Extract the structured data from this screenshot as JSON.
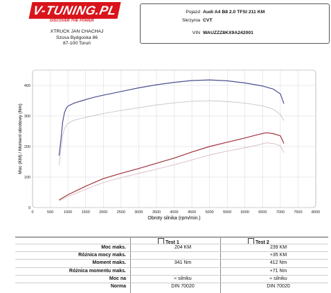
{
  "header": {
    "logo_text": "V-TUNING.PL",
    "logo_tagline": "DISCOVER THE POWER",
    "company_name": "XTRUCK JAN CHACHAJ",
    "company_street": "Szosa Bydgoska 86",
    "company_city": "87-100 Toruń"
  },
  "vehicle": {
    "pojazd_label": "Pojazd",
    "pojazd_value": "Audi A4 B8 2.0 TFSI 211 KM",
    "skrzynia_label": "Skrzynia",
    "skrzynia_value": "CVT",
    "vin_label": "VIN",
    "vin_value": "WAUZZZ8KX9A242001"
  },
  "colors": {
    "power_tuned": "#4b4f8f",
    "torque_tuned": "#bdbdc7",
    "power_stock": "#a0303c",
    "torque_stock": "#d6b3b8",
    "grid": "#cccccc",
    "plot_bg": "#ffffff"
  },
  "chart_data": {
    "type": "line",
    "xlabel": "Obroty silnika (rpm/min.)",
    "ylabel": "Moc (KM) / Moment obrotowy (Nm)",
    "xlim": [
      0,
      8000
    ],
    "ylim": [
      0,
      450
    ],
    "xticks": [
      0,
      500,
      1000,
      1500,
      2000,
      2500,
      3000,
      3500,
      4000,
      4500,
      5000,
      5500,
      6000,
      6500,
      7000,
      7500,
      8000
    ],
    "yticks": [
      0,
      100,
      200,
      300,
      400
    ],
    "grid": true,
    "series": [
      {
        "x": [
          750,
          800,
          850,
          900,
          950,
          1000,
          1100,
          1200,
          1400,
          1600,
          1800,
          2000,
          2500,
          3000,
          3500,
          4000,
          4500,
          5000,
          5500,
          6000,
          6500,
          6800,
          7000,
          7100
        ],
        "y": [
          170,
          220,
          280,
          310,
          325,
          332,
          338,
          343,
          350,
          357,
          363,
          368,
          380,
          392,
          402,
          410,
          416,
          418,
          415,
          408,
          398,
          388,
          372,
          340
        ]
      },
      {
        "x": [
          750,
          800,
          850,
          900,
          950,
          1000,
          1100,
          1200,
          1400,
          1600,
          1800,
          2000,
          2500,
          3000,
          3500,
          4000,
          4500,
          5000,
          5500,
          6000,
          6500,
          6800,
          7000,
          7100
        ],
        "y": [
          140,
          190,
          235,
          258,
          268,
          275,
          282,
          287,
          293,
          298,
          303,
          308,
          318,
          327,
          336,
          343,
          348,
          350,
          347,
          342,
          333,
          322,
          305,
          285
        ]
      },
      {
        "x": [
          750,
          1000,
          1500,
          2000,
          2500,
          3000,
          3500,
          4000,
          4500,
          5000,
          5500,
          6000,
          6400,
          6600,
          6800,
          7000,
          7100
        ],
        "y": [
          25,
          42,
          70,
          95,
          112,
          128,
          145,
          162,
          182,
          200,
          214,
          228,
          240,
          245,
          242,
          235,
          210
        ]
      },
      {
        "x": [
          750,
          1000,
          1500,
          2000,
          2500,
          3000,
          3500,
          4000,
          4500,
          5000,
          5500,
          6000,
          6400,
          6600,
          6800,
          7000,
          7100
        ],
        "y": [
          22,
          36,
          60,
          82,
          98,
          112,
          126,
          140,
          156,
          172,
          185,
          196,
          206,
          212,
          210,
          202,
          180
        ]
      }
    ]
  },
  "table": {
    "test1_header": "Test 1",
    "test2_header": "Test 2",
    "rows": [
      {
        "label": "Moc maks.",
        "test1": "204 KM",
        "test2": "239 KM"
      },
      {
        "label": "Różnica mocy maks.",
        "test1": "",
        "test2": "+35 KM"
      },
      {
        "label": "Moment maks.",
        "test1": "341 Nm",
        "test2": "412 Nm"
      },
      {
        "label": "Różnica momentu maks.",
        "test1": "",
        "test2": "+71 Nm"
      },
      {
        "label": "Moc na",
        "test1": "≈ silniku",
        "test2": "≈ silniku"
      },
      {
        "label": "Norma",
        "test1": "DIN 70020",
        "test2": "DIN 70020"
      }
    ]
  }
}
